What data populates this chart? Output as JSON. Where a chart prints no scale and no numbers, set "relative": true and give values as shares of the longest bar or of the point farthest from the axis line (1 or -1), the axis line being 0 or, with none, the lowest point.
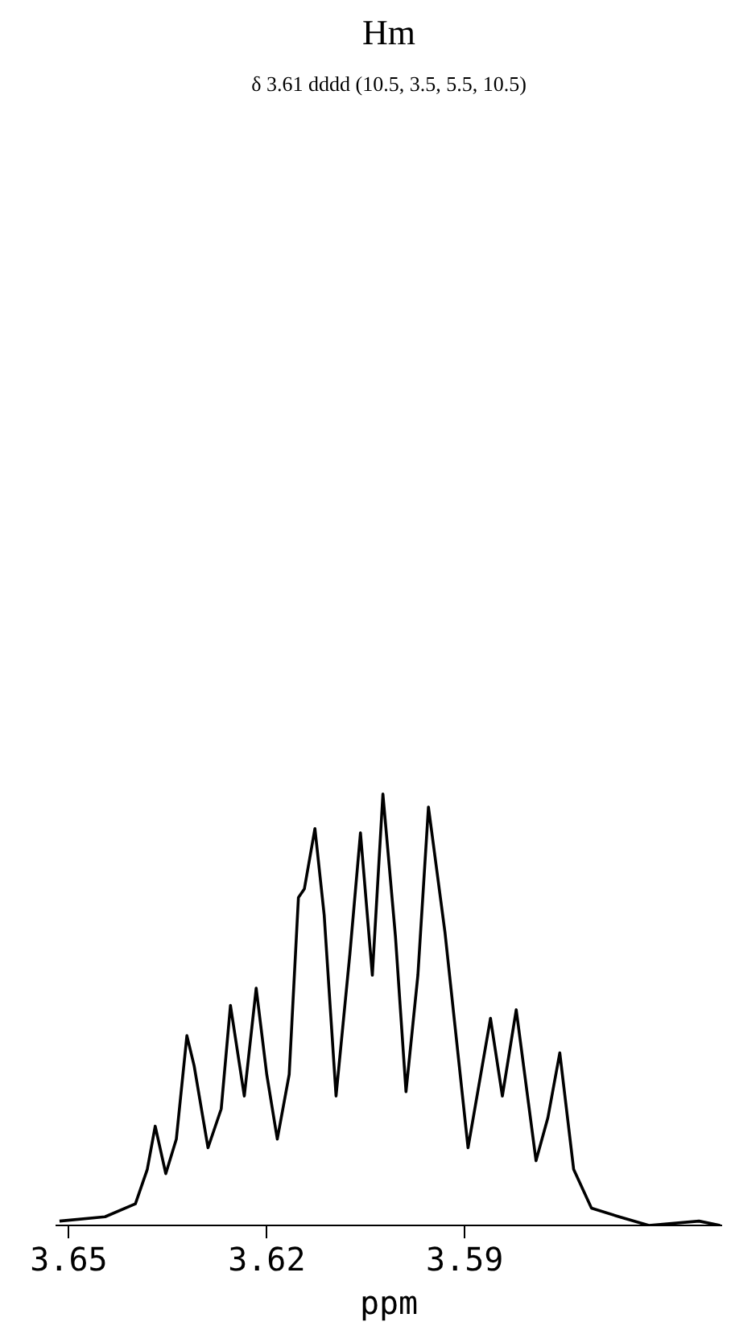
{
  "chart_data": {
    "type": "line",
    "title": "Hm",
    "subtitle": "δ 3.61 dddd (10.5, 3.5, 5.5, 10.5)",
    "xlabel": "ppm",
    "relative": true,
    "grid": false,
    "marker": "none",
    "line_style": "solid",
    "xlim": [
      3.652,
      3.551
    ],
    "xticks": [
      3.65,
      3.62,
      3.59
    ],
    "series": [
      {
        "color": "#000000",
        "x": [
          3.6514,
          3.6445,
          3.6399,
          3.6381,
          3.6369,
          3.6353,
          3.6337,
          3.6321,
          3.631,
          3.6289,
          3.6269,
          3.6255,
          3.6234,
          3.6216,
          3.62,
          3.6184,
          3.6166,
          3.6152,
          3.6143,
          3.6127,
          3.6113,
          3.6095,
          3.6074,
          3.6058,
          3.604,
          3.6024,
          3.6005,
          3.5989,
          3.5971,
          3.5955,
          3.593,
          3.5895,
          3.5861,
          3.5843,
          3.5822,
          3.5792,
          3.5774,
          3.5756,
          3.5735,
          3.5708,
          3.5666,
          3.5621,
          3.5545,
          3.5513
        ],
        "values": [
          0.01,
          0.02,
          0.05,
          0.13,
          0.23,
          0.12,
          0.2,
          0.44,
          0.37,
          0.18,
          0.27,
          0.51,
          0.3,
          0.55,
          0.35,
          0.2,
          0.35,
          0.76,
          0.78,
          0.92,
          0.72,
          0.3,
          0.63,
          0.91,
          0.58,
          1.0,
          0.67,
          0.31,
          0.58,
          0.97,
          0.68,
          0.18,
          0.48,
          0.3,
          0.5,
          0.15,
          0.25,
          0.4,
          0.13,
          0.04,
          0.02,
          0,
          0.01,
          0
        ]
      }
    ]
  }
}
